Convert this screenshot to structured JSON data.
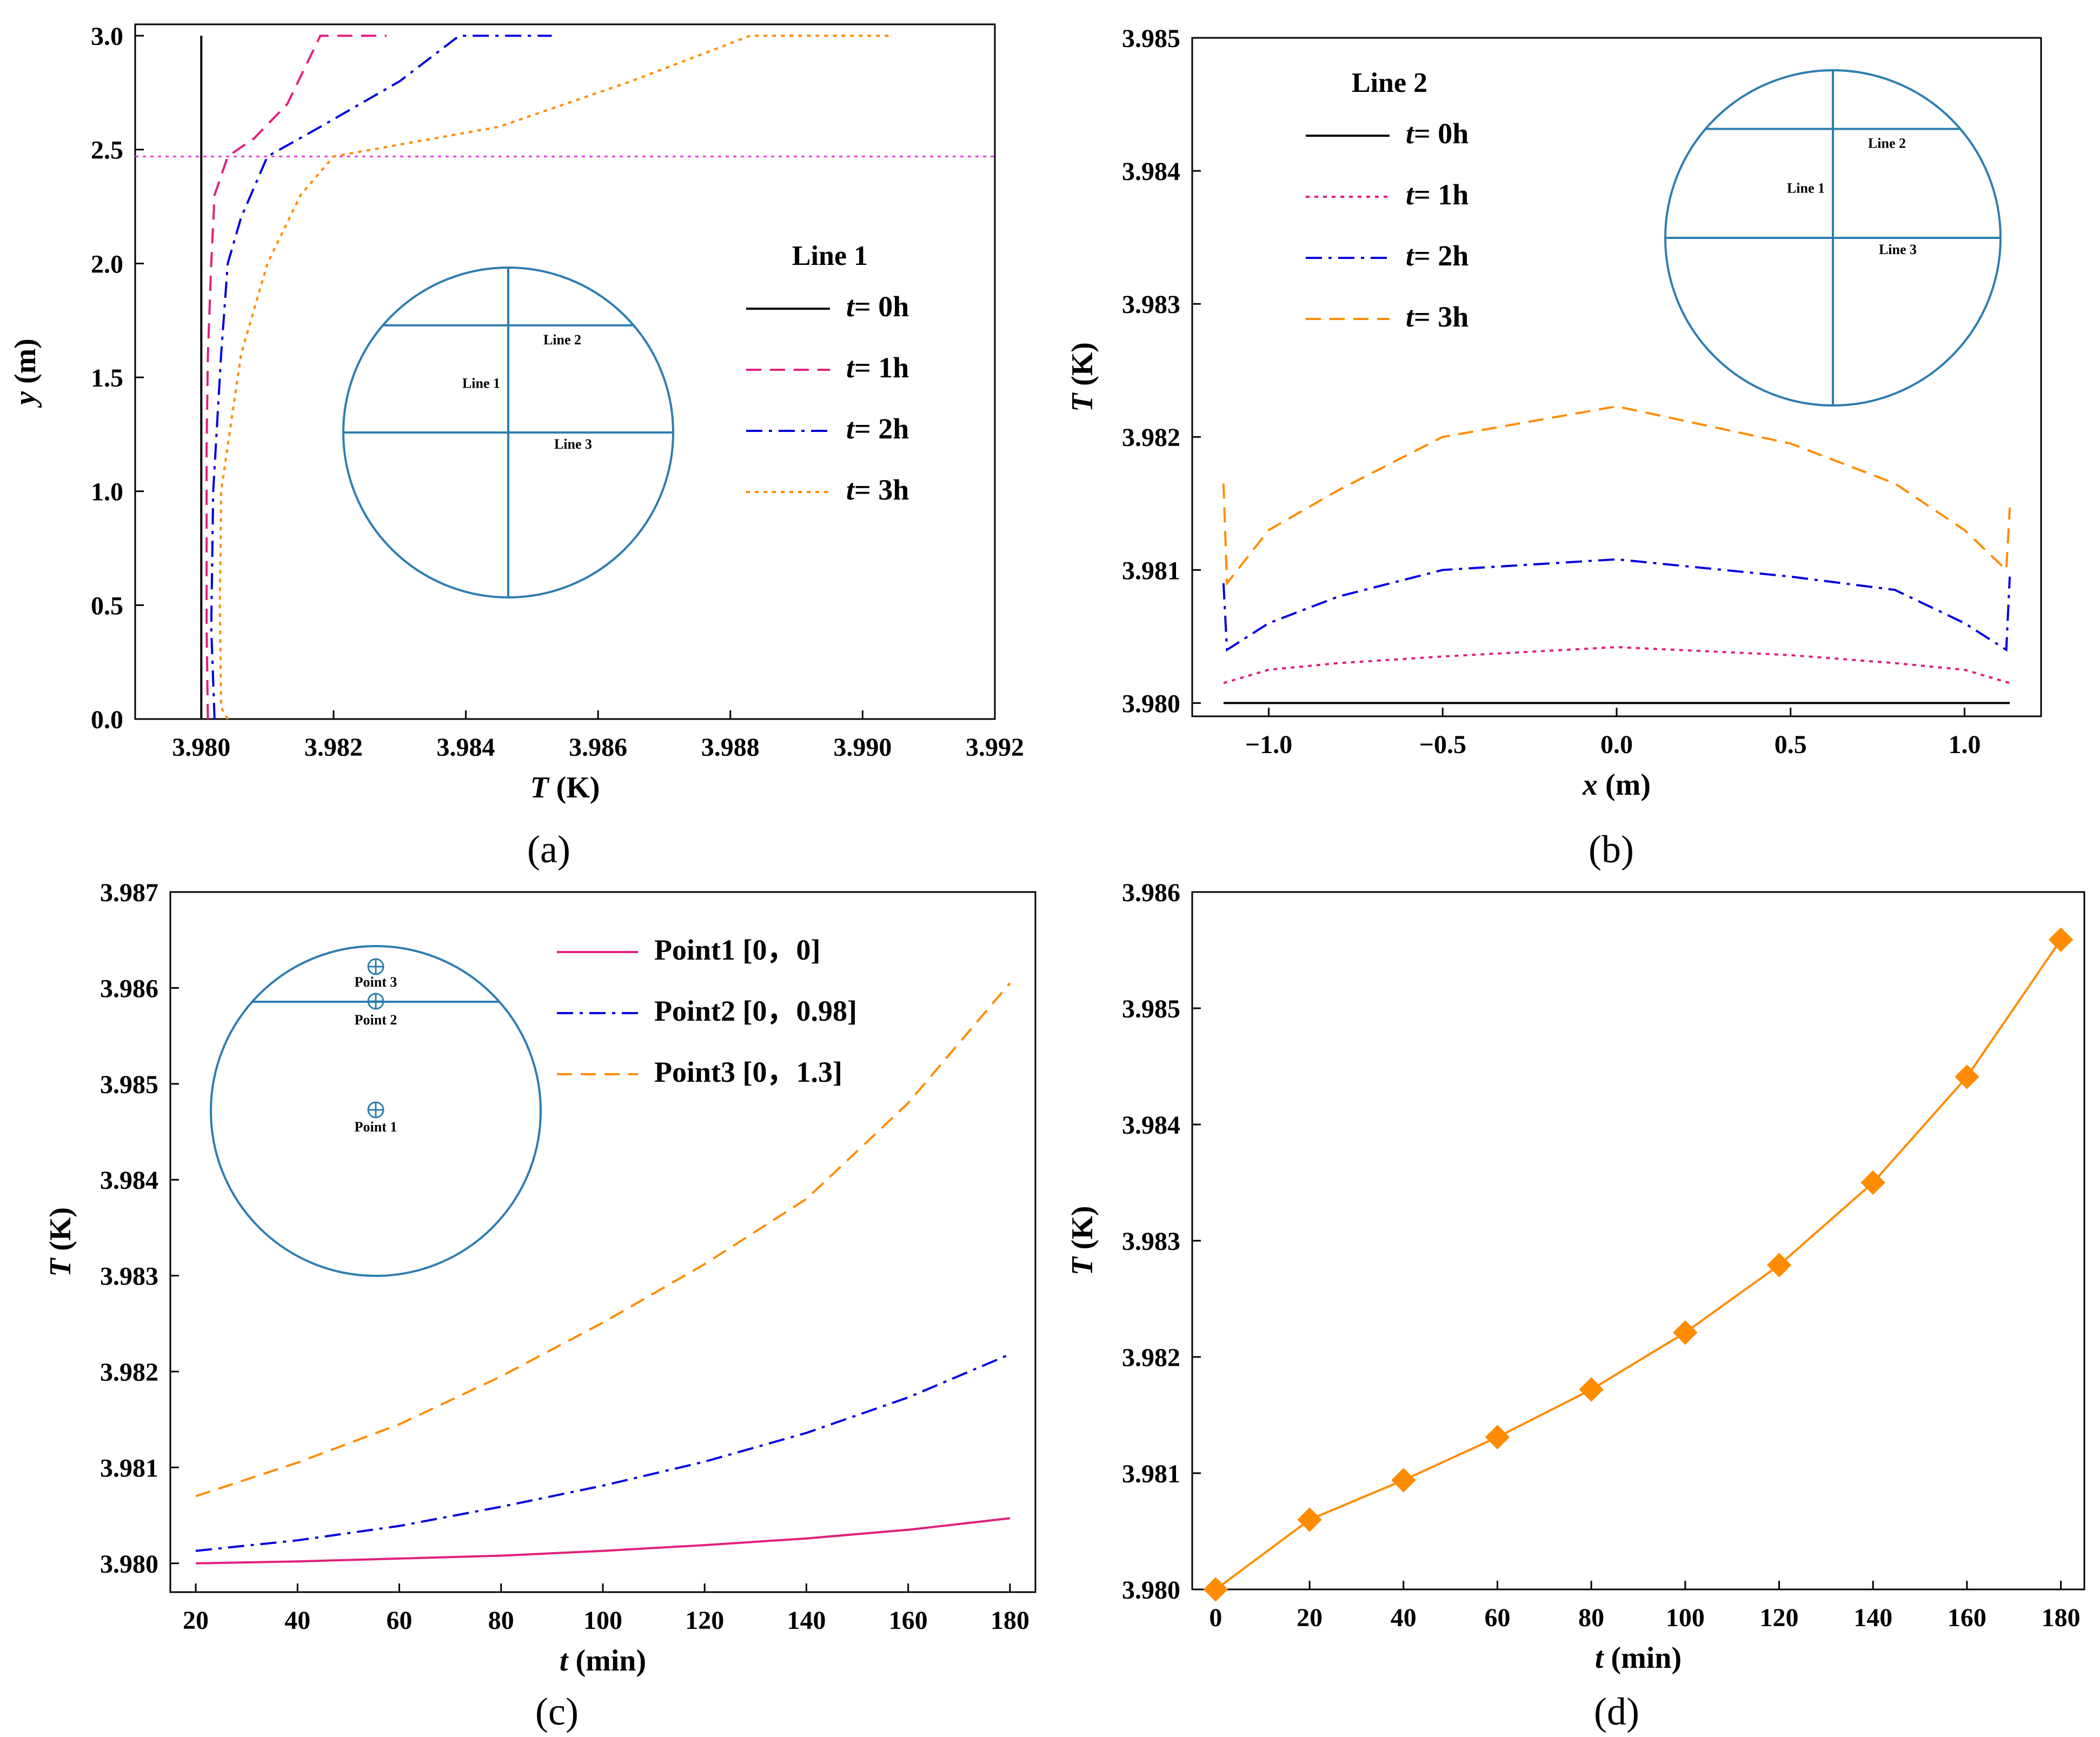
{
  "chart_data": [
    {
      "id": "a",
      "type": "line",
      "caption": "(a)",
      "xlabel_var": "T",
      "xlabel_unit": " (K)",
      "ylabel_var": "y",
      "ylabel_unit": " (m)",
      "xlim": [
        3.979,
        3.992
      ],
      "ylim": [
        0,
        3.05
      ],
      "xticks": [
        "3.980",
        "3.982",
        "3.984",
        "3.986",
        "3.988",
        "3.990",
        "3.992"
      ],
      "yticks": [
        "0.0",
        "0.5",
        "1.0",
        "1.5",
        "2.0",
        "2.5",
        "3.0"
      ],
      "reference_line": {
        "y": 2.47,
        "color": "#e040e0",
        "style": "dotted"
      },
      "legend_title": "Line 1",
      "series": [
        {
          "name": "= 0h",
          "t": "t",
          "color": "#000000",
          "style": "solid",
          "points": [
            [
              3.98,
              0
            ],
            [
              3.98,
              3.0
            ]
          ]
        },
        {
          "name": "= 1h",
          "t": "t",
          "color": "#e0207a",
          "style": "dash",
          "points": [
            [
              3.9801,
              0
            ],
            [
              3.98008,
              0.4
            ],
            [
              3.98008,
              1.2
            ],
            [
              3.9801,
              1.6
            ],
            [
              3.98015,
              2.0
            ],
            [
              3.9802,
              2.3
            ],
            [
              3.9804,
              2.47
            ],
            [
              3.9808,
              2.55
            ],
            [
              3.9813,
              2.7
            ],
            [
              3.9818,
              3.0
            ],
            [
              3.9828,
              3.0
            ]
          ]
        },
        {
          "name": "= 2h",
          "t": "t",
          "color": "#0000e0",
          "style": "dashdot",
          "points": [
            [
              3.9802,
              0
            ],
            [
              3.98015,
              0.4
            ],
            [
              3.98018,
              1.0
            ],
            [
              3.9803,
              1.6
            ],
            [
              3.9804,
              2.0
            ],
            [
              3.9806,
              2.2
            ],
            [
              3.981,
              2.47
            ],
            [
              3.9818,
              2.6
            ],
            [
              3.983,
              2.8
            ],
            [
              3.9839,
              3.0
            ],
            [
              3.9853,
              3.0
            ]
          ]
        },
        {
          "name": "= 3h",
          "t": "t",
          "color": "#ff8c00",
          "style": "dotted",
          "points": [
            [
              3.9804,
              0
            ],
            [
              3.9803,
              0.05
            ],
            [
              3.98028,
              0.5
            ],
            [
              3.9803,
              1.0
            ],
            [
              3.9806,
              1.6
            ],
            [
              3.981,
              2.0
            ],
            [
              3.9815,
              2.3
            ],
            [
              3.982,
              2.47
            ],
            [
              3.9845,
              2.6
            ],
            [
              3.9865,
              2.8
            ],
            [
              3.9883,
              3.0
            ],
            [
              3.9904,
              3.0
            ]
          ]
        }
      ],
      "inset_labels": [
        "Line 1",
        "Line 2",
        "Line 3"
      ]
    },
    {
      "id": "b",
      "type": "line",
      "caption": "(b)",
      "xlabel_var": "x",
      "xlabel_unit": " (m)",
      "ylabel_var": "T",
      "ylabel_unit": " (K)",
      "xlim": [
        -1.22,
        1.22
      ],
      "ylim": [
        3.9799,
        3.985
      ],
      "xticks": [
        "-1.0",
        "-0.5",
        "0.0",
        "0.5",
        "1.0"
      ],
      "yticks": [
        "3.980",
        "3.981",
        "3.982",
        "3.983",
        "3.984",
        "3.985"
      ],
      "legend_title": "Line 2",
      "series": [
        {
          "name": "= 0h",
          "t": "t",
          "color": "#000000",
          "style": "solid",
          "points": [
            [
              -1.13,
              3.98
            ],
            [
              1.13,
              3.98
            ]
          ]
        },
        {
          "name": "= 1h",
          "t": "t",
          "color": "#e0207a",
          "style": "dotted",
          "points": [
            [
              -1.13,
              3.98015
            ],
            [
              -1.0,
              3.98025
            ],
            [
              -0.8,
              3.9803
            ],
            [
              -0.5,
              3.98035
            ],
            [
              0,
              3.98042
            ],
            [
              0.5,
              3.98036
            ],
            [
              0.8,
              3.9803
            ],
            [
              1.0,
              3.98025
            ],
            [
              1.13,
              3.98015
            ]
          ]
        },
        {
          "name": "= 2h",
          "t": "t",
          "color": "#0000e0",
          "style": "dashdot",
          "points": [
            [
              -1.13,
              3.9809
            ],
            [
              -1.12,
              3.9804
            ],
            [
              -1.0,
              3.9806
            ],
            [
              -0.8,
              3.9808
            ],
            [
              -0.5,
              3.981
            ],
            [
              0,
              3.98108
            ],
            [
              0.5,
              3.98095
            ],
            [
              0.8,
              3.98085
            ],
            [
              1.0,
              3.9806
            ],
            [
              1.12,
              3.9804
            ],
            [
              1.13,
              3.98095
            ]
          ]
        },
        {
          "name": "= 3h",
          "t": "t",
          "color": "#ff8c00",
          "style": "dash",
          "points": [
            [
              -1.13,
              3.98165
            ],
            [
              -1.12,
              3.9809
            ],
            [
              -1.0,
              3.9813
            ],
            [
              -0.8,
              3.9816
            ],
            [
              -0.5,
              3.982
            ],
            [
              0,
              3.98223
            ],
            [
              0.5,
              3.98195
            ],
            [
              0.8,
              3.98165
            ],
            [
              1.0,
              3.9813
            ],
            [
              1.12,
              3.981
            ],
            [
              1.13,
              3.98147
            ]
          ]
        }
      ],
      "inset_labels": [
        "Line 1",
        "Line 2",
        "Line 3"
      ]
    },
    {
      "id": "c",
      "type": "line",
      "caption": "(c)",
      "xlabel_var": "t",
      "xlabel_unit": " (min)",
      "ylabel_var": "T",
      "ylabel_unit": " (K)",
      "xlim": [
        15,
        185
      ],
      "ylim": [
        3.9797,
        3.987
      ],
      "xticks": [
        "20",
        "40",
        "60",
        "80",
        "100",
        "120",
        "140",
        "160",
        "180"
      ],
      "yticks": [
        "3.980",
        "3.981",
        "3.982",
        "3.983",
        "3.984",
        "3.985",
        "3.986",
        "3.987"
      ],
      "series": [
        {
          "name": "Point1 [0，0]",
          "color": "#e0207a",
          "style": "solid",
          "points": [
            [
              20,
              3.98
            ],
            [
              40,
              3.98002
            ],
            [
              60,
              3.98005
            ],
            [
              80,
              3.98008
            ],
            [
              100,
              3.98013
            ],
            [
              120,
              3.98019
            ],
            [
              140,
              3.98026
            ],
            [
              160,
              3.98035
            ],
            [
              180,
              3.98047
            ]
          ]
        },
        {
          "name": "Point2 [0，0.98]",
          "color": "#0000e0",
          "style": "dashdot",
          "points": [
            [
              20,
              3.98013
            ],
            [
              40,
              3.98024
            ],
            [
              60,
              3.98039
            ],
            [
              80,
              3.98059
            ],
            [
              100,
              3.98081
            ],
            [
              120,
              3.98106
            ],
            [
              140,
              3.98136
            ],
            [
              160,
              3.98173
            ],
            [
              180,
              3.98218
            ]
          ]
        },
        {
          "name": "Point3 [0，1.3]",
          "color": "#ff8c00",
          "style": "dash",
          "points": [
            [
              20,
              3.9807
            ],
            [
              40,
              3.98105
            ],
            [
              60,
              3.98145
            ],
            [
              80,
              3.98195
            ],
            [
              100,
              3.98251
            ],
            [
              120,
              3.98312
            ],
            [
              140,
              3.9838
            ],
            [
              160,
              3.9848
            ],
            [
              180,
              3.98605
            ]
          ]
        }
      ],
      "inset_labels": [
        "Point 3",
        "Point 2",
        "Point 1"
      ]
    },
    {
      "id": "d",
      "type": "line",
      "caption": "(d)",
      "xlabel_var": "t",
      "xlabel_unit": " (min)",
      "ylabel_var": "T",
      "ylabel_unit": " (K)",
      "xlim": [
        -5,
        185
      ],
      "ylim": [
        3.98,
        3.986
      ],
      "xticks": [
        "0",
        "20",
        "40",
        "60",
        "80",
        "100",
        "120",
        "140",
        "160",
        "180"
      ],
      "yticks": [
        "3.980",
        "3.981",
        "3.982",
        "3.983",
        "3.984",
        "3.985",
        "3.986"
      ],
      "series": [
        {
          "color": "#ff8c00",
          "style": "solid",
          "marker": "diamond",
          "points": [
            [
              0,
              3.98
            ],
            [
              20,
              3.9806
            ],
            [
              40,
              3.98094
            ],
            [
              60,
              3.98131
            ],
            [
              80,
              3.98172
            ],
            [
              100,
              3.98221
            ],
            [
              120,
              3.98279
            ],
            [
              140,
              3.9835
            ],
            [
              160,
              3.98441
            ],
            [
              180,
              3.98559
            ]
          ]
        }
      ]
    }
  ]
}
